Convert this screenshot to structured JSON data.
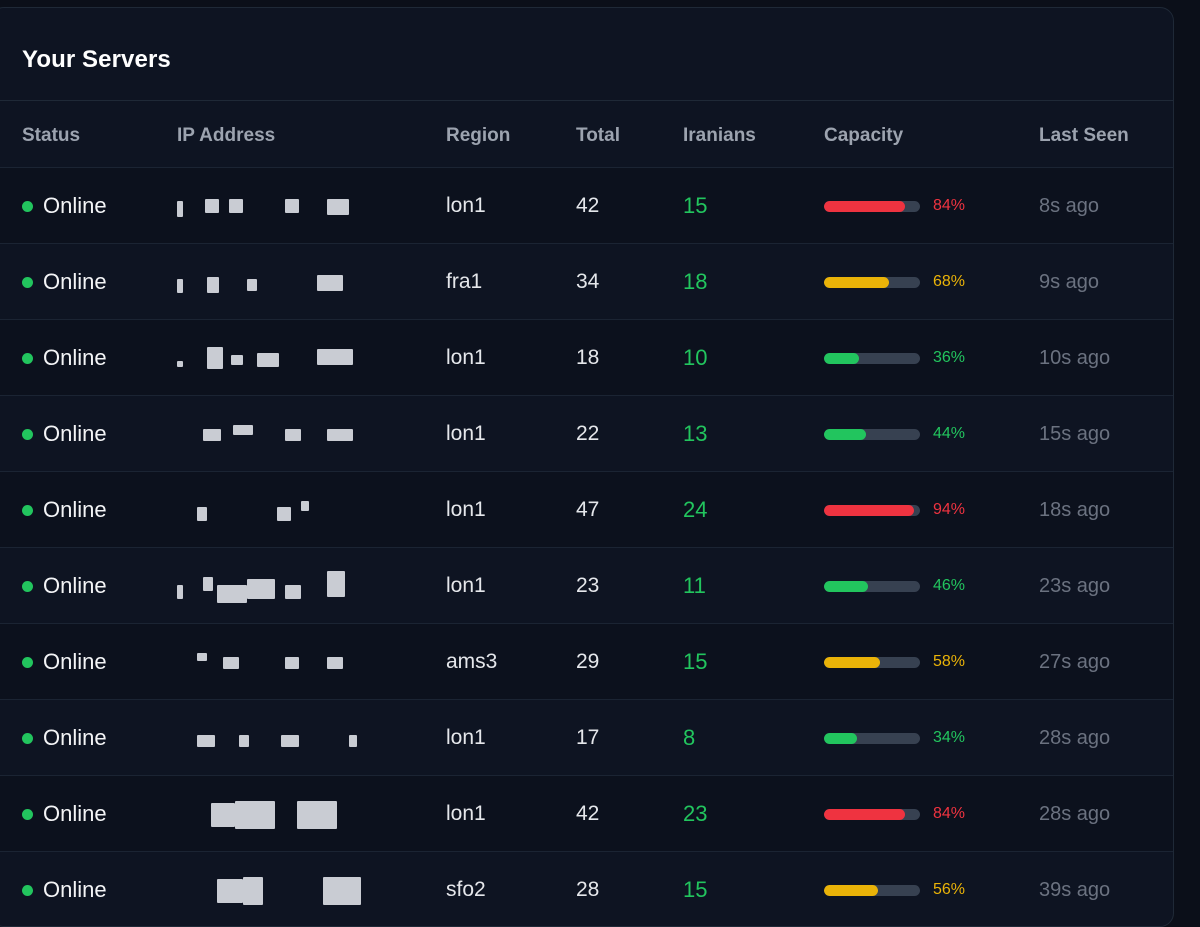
{
  "panel": {
    "title": "Your Servers"
  },
  "columns": {
    "status": "Status",
    "ip": "IP Address",
    "region": "Region",
    "total": "Total",
    "iranians": "Iranians",
    "capacity": "Capacity",
    "last_seen": "Last Seen"
  },
  "colors": {
    "high": "#ef3340",
    "medium": "#eab308",
    "low": "#22c55e",
    "online": "#22c55e"
  },
  "servers": [
    {
      "status": "Online",
      "region": "lon1",
      "total": "42",
      "iranians": "15",
      "capacity": 84,
      "capacity_label": "84%",
      "level": "high",
      "last_seen": "8s ago"
    },
    {
      "status": "Online",
      "region": "fra1",
      "total": "34",
      "iranians": "18",
      "capacity": 68,
      "capacity_label": "68%",
      "level": "medium",
      "last_seen": "9s ago"
    },
    {
      "status": "Online",
      "region": "lon1",
      "total": "18",
      "iranians": "10",
      "capacity": 36,
      "capacity_label": "36%",
      "level": "low",
      "last_seen": "10s ago"
    },
    {
      "status": "Online",
      "region": "lon1",
      "total": "22",
      "iranians": "13",
      "capacity": 44,
      "capacity_label": "44%",
      "level": "low",
      "last_seen": "15s ago"
    },
    {
      "status": "Online",
      "region": "lon1",
      "total": "47",
      "iranians": "24",
      "capacity": 94,
      "capacity_label": "94%",
      "level": "high",
      "last_seen": "18s ago"
    },
    {
      "status": "Online",
      "region": "lon1",
      "total": "23",
      "iranians": "11",
      "capacity": 46,
      "capacity_label": "46%",
      "level": "low",
      "last_seen": "23s ago"
    },
    {
      "status": "Online",
      "region": "ams3",
      "total": "29",
      "iranians": "15",
      "capacity": 58,
      "capacity_label": "58%",
      "level": "medium",
      "last_seen": "27s ago"
    },
    {
      "status": "Online",
      "region": "lon1",
      "total": "17",
      "iranians": "8",
      "capacity": 34,
      "capacity_label": "34%",
      "level": "low",
      "last_seen": "28s ago"
    },
    {
      "status": "Online",
      "region": "lon1",
      "total": "42",
      "iranians": "23",
      "capacity": 84,
      "capacity_label": "84%",
      "level": "high",
      "last_seen": "28s ago"
    },
    {
      "status": "Online",
      "region": "sfo2",
      "total": "28",
      "iranians": "15",
      "capacity": 56,
      "capacity_label": "56%",
      "level": "medium",
      "last_seen": "39s ago"
    }
  ]
}
